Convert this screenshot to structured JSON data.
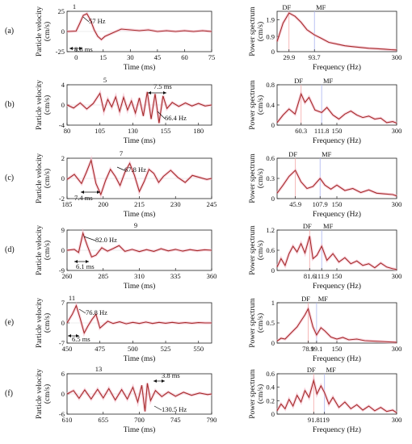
{
  "chart_data": [
    {
      "type": "line",
      "kind": "time",
      "row": "(a)",
      "peak_label": "1",
      "freq_label": "57 Hz",
      "dur_label": "8.8 ms",
      "xlabel": "Time (ms)",
      "ylabel": "Particle velocity\n(cm/s)",
      "xlim": [
        -5,
        75
      ],
      "ylim": [
        -25,
        25
      ],
      "xticks": [
        0,
        15,
        30,
        45,
        60,
        75
      ],
      "yticks": [
        -25,
        0,
        25
      ],
      "x": [
        -5,
        0,
        2,
        4,
        6,
        8,
        10,
        12,
        14,
        16,
        20,
        25,
        30,
        35,
        40,
        45,
        50,
        55,
        60,
        65,
        70,
        75
      ],
      "y": [
        0,
        0.5,
        10,
        20,
        22,
        14,
        2,
        -6,
        -10,
        -6,
        -2,
        3,
        2,
        1,
        2,
        0,
        1,
        0,
        1,
        0,
        1,
        0
      ]
    },
    {
      "type": "line",
      "kind": "spectrum",
      "row": "(a)",
      "df_label": "DF",
      "mf_label": "MF",
      "xlabel": "Frequency (Hz)",
      "ylabel": "Power spectrum\n(cm/s)",
      "xlim": [
        0,
        300
      ],
      "ylim": [
        0,
        2.4
      ],
      "xticks": [
        29.9,
        93.7,
        300
      ],
      "yticks": [
        0,
        0.9,
        1.9
      ],
      "df": 29.9,
      "mf": 93.7,
      "x": [
        0,
        15,
        29.9,
        45,
        60,
        75,
        93.7,
        110,
        130,
        150,
        170,
        190,
        210,
        230,
        250,
        270,
        285,
        300
      ],
      "y": [
        0.6,
        1.7,
        2.3,
        2.1,
        1.75,
        1.3,
        1.0,
        0.8,
        0.55,
        0.45,
        0.35,
        0.3,
        0.25,
        0.2,
        0.18,
        0.15,
        0.12,
        0.1
      ]
    },
    {
      "type": "line",
      "kind": "time",
      "row": "(b)",
      "peak_label": "5",
      "freq_label": "66.4 Hz",
      "dur_label": "7.5 ms",
      "xlabel": "Time (ms)",
      "ylabel": "Particle velocity\n(cm/s)",
      "xlim": [
        80,
        190
      ],
      "ylim": [
        -4,
        4
      ],
      "xticks": [
        80,
        105,
        130,
        155,
        180
      ],
      "yticks": [
        -4,
        0,
        4
      ],
      "x": [
        80,
        85,
        90,
        95,
        100,
        105,
        108,
        111,
        114,
        117,
        120,
        123,
        126,
        129,
        132,
        135,
        138,
        141,
        144,
        147,
        150,
        153,
        156,
        160,
        165,
        170,
        175,
        180,
        185,
        190
      ],
      "y": [
        0,
        -0.6,
        0.4,
        -0.8,
        0.3,
        2.3,
        -1.2,
        1.1,
        -0.4,
        1.6,
        -1.3,
        1.5,
        -1.0,
        0.8,
        -1.6,
        1.4,
        -2.2,
        2.6,
        -2.8,
        2.2,
        -3.6,
        1.8,
        -0.7,
        0.5,
        -0.3,
        0.4,
        -0.2,
        0.3,
        -0.2,
        0
      ]
    },
    {
      "type": "line",
      "kind": "spectrum",
      "row": "(b)",
      "df_label": "DF",
      "mf_label": "MF",
      "xlabel": "Frequency (Hz)",
      "ylabel": "Power spectrum\n(cm/s)",
      "xlim": [
        0,
        300
      ],
      "ylim": [
        0,
        0.8
      ],
      "xticks": [
        60.3,
        111.8,
        150,
        300
      ],
      "yticks": [
        0,
        0.4,
        0.8
      ],
      "df": 60.3,
      "mf": 111.8,
      "x": [
        0,
        15,
        30,
        45,
        60.3,
        70,
        80,
        95,
        111.8,
        125,
        140,
        155,
        170,
        185,
        200,
        215,
        230,
        245,
        260,
        275,
        290,
        300
      ],
      "y": [
        0.05,
        0.2,
        0.32,
        0.22,
        0.62,
        0.45,
        0.55,
        0.3,
        0.25,
        0.35,
        0.2,
        0.12,
        0.22,
        0.28,
        0.2,
        0.15,
        0.18,
        0.12,
        0.14,
        0.05,
        0.07,
        0.04
      ]
    },
    {
      "type": "line",
      "kind": "time",
      "row": "(c)",
      "peak_label": "7",
      "freq_label": "67.8 Hz",
      "dur_label": "7.4 ms",
      "xlabel": "Time (ms)",
      "ylabel": "Particle velocity\n(cm/s)",
      "xlim": [
        185,
        245
      ],
      "ylim": [
        -2,
        2
      ],
      "xticks": [
        185,
        200,
        215,
        230,
        245
      ],
      "yticks": [
        -2,
        0,
        2
      ],
      "x": [
        185,
        188,
        191,
        193,
        195,
        197,
        199,
        201,
        203,
        205,
        207,
        209,
        211,
        213,
        215,
        217,
        219,
        221,
        223,
        225,
        228,
        231,
        234,
        237,
        240,
        243,
        245
      ],
      "y": [
        -0.1,
        0.4,
        -0.5,
        0.6,
        1.8,
        -0.5,
        -1.6,
        -0.2,
        0.9,
        0.2,
        -0.7,
        0.6,
        1.5,
        0.3,
        -1.3,
        -0.3,
        0.9,
        0.5,
        -0.4,
        0.2,
        0.8,
        0.1,
        -0.4,
        0.3,
        0.1,
        -0.1,
        0
      ]
    },
    {
      "type": "line",
      "kind": "spectrum",
      "row": "(c)",
      "df_label": "DF",
      "mf_label": "MF",
      "xlabel": "Frequency (Hz)",
      "ylabel": "Power spectrum\n(cm/s)",
      "xlim": [
        0,
        300
      ],
      "ylim": [
        0,
        0.6
      ],
      "xticks": [
        45.9,
        107.9,
        150,
        300
      ],
      "yticks": [
        0,
        0.3,
        0.6
      ],
      "df": 45.9,
      "mf": 107.9,
      "x": [
        0,
        15,
        30,
        45.9,
        60,
        75,
        90,
        107.9,
        120,
        135,
        150,
        170,
        190,
        210,
        230,
        250,
        270,
        290,
        300
      ],
      "y": [
        0.08,
        0.2,
        0.33,
        0.42,
        0.25,
        0.15,
        0.18,
        0.3,
        0.2,
        0.14,
        0.2,
        0.12,
        0.15,
        0.09,
        0.13,
        0.08,
        0.07,
        0.06,
        0.04
      ]
    },
    {
      "type": "line",
      "kind": "time",
      "row": "(d)",
      "peak_label": "9",
      "freq_label": "82.0 Hz",
      "dur_label": "6.1 ms",
      "xlabel": "Time (ms)",
      "ylabel": "Particle velocity\n(cm/s)",
      "xlim": [
        260,
        360
      ],
      "ylim": [
        -9,
        9
      ],
      "xticks": [
        260,
        285,
        310,
        335,
        360
      ],
      "yticks": [
        -9,
        0,
        9
      ],
      "x": [
        260,
        265,
        268,
        271,
        274,
        277,
        280,
        284,
        288,
        292,
        296,
        300,
        305,
        310,
        315,
        320,
        325,
        330,
        335,
        340,
        345,
        350,
        355,
        360
      ],
      "y": [
        0,
        0.4,
        -1.0,
        7.6,
        2.0,
        -3.0,
        -2.2,
        1.1,
        -0.4,
        0.8,
        2.1,
        -0.5,
        0.4,
        -0.6,
        0.3,
        -0.5,
        0.7,
        -0.3,
        0.4,
        -0.4,
        0.3,
        -0.2,
        0.2,
        0
      ]
    },
    {
      "type": "line",
      "kind": "spectrum",
      "row": "(d)",
      "df_label": "DF",
      "mf_label": "MF",
      "xlabel": "Frequency (Hz)",
      "ylabel": "Power spectrum\n(cm/s)",
      "xlim": [
        0,
        300
      ],
      "ylim": [
        0,
        1.2
      ],
      "xticks": [
        81.6,
        111.9,
        150,
        300
      ],
      "yticks": [
        0,
        0.6,
        1.2
      ],
      "df": 81.6,
      "mf": 111.9,
      "x": [
        0,
        10,
        20,
        30,
        40,
        50,
        60,
        70,
        81.6,
        90,
        100,
        111.9,
        125,
        140,
        155,
        170,
        185,
        200,
        215,
        230,
        245,
        260,
        275,
        290,
        300
      ],
      "y": [
        0.1,
        0.35,
        0.15,
        0.5,
        0.72,
        0.55,
        0.8,
        0.52,
        1.02,
        0.35,
        0.45,
        0.72,
        0.3,
        0.5,
        0.25,
        0.38,
        0.2,
        0.28,
        0.15,
        0.2,
        0.08,
        0.22,
        0.1,
        0.05,
        0.03
      ]
    },
    {
      "type": "line",
      "kind": "time",
      "row": "(e)",
      "peak_label": "11",
      "freq_label": "76.8 Hz",
      "dur_label": "6.5 ms",
      "xlabel": "Time (ms)",
      "ylabel": "Particle velocity\n(cm/s)",
      "xlim": [
        450,
        560
      ],
      "ylim": [
        -7,
        7
      ],
      "xticks": [
        450,
        475,
        500,
        525,
        550
      ],
      "yticks": [
        -7,
        0,
        7
      ],
      "x": [
        450,
        454,
        457,
        460,
        463,
        466,
        469,
        472,
        475,
        478,
        481,
        485,
        490,
        495,
        500,
        505,
        510,
        515,
        520,
        525,
        530,
        535,
        540,
        545,
        550,
        555,
        560
      ],
      "y": [
        0,
        3.0,
        6.0,
        1.5,
        -3.5,
        -1.0,
        1.2,
        3.0,
        -1.8,
        -0.6,
        0.6,
        -0.2,
        0.4,
        -0.3,
        0.2,
        -0.2,
        0.3,
        -0.2,
        0.2,
        -0.1,
        0.2,
        -0.1,
        0.1,
        -0.1,
        0.1,
        0,
        0
      ]
    },
    {
      "type": "line",
      "kind": "spectrum",
      "row": "(e)",
      "df_label": "DF",
      "mf_label": "MF",
      "xlabel": "Frequency (Hz)",
      "ylabel": "Power spectrum\n(cm/s)",
      "xlim": [
        0,
        300
      ],
      "ylim": [
        0,
        1.0
      ],
      "xticks": [
        78.1,
        99.1,
        150,
        300
      ],
      "yticks": [
        0,
        0.5,
        1.0
      ],
      "df": 78.1,
      "mf": 99.1,
      "x": [
        0,
        10,
        20,
        30,
        40,
        50,
        60,
        70,
        78.1,
        90,
        99.1,
        110,
        120,
        135,
        150,
        165,
        180,
        200,
        220,
        240,
        260,
        280,
        300
      ],
      "y": [
        0.05,
        0.12,
        0.1,
        0.2,
        0.3,
        0.4,
        0.55,
        0.7,
        0.85,
        0.4,
        0.2,
        0.38,
        0.3,
        0.15,
        0.1,
        0.14,
        0.08,
        0.1,
        0.06,
        0.05,
        0.04,
        0.03,
        0.02
      ]
    },
    {
      "type": "line",
      "kind": "time",
      "row": "(f)",
      "peak_label": "13",
      "freq_label": "130.5 Hz",
      "dur_label": "3.8 ms",
      "xlabel": "Time (ms)",
      "ylabel": "Particle velocity\n(cm/s)",
      "xlim": [
        610,
        790
      ],
      "ylim": [
        -6,
        6
      ],
      "xticks": [
        610,
        655,
        700,
        745,
        790
      ],
      "yticks": [
        -6,
        0,
        6
      ],
      "x": [
        610,
        618,
        625,
        632,
        640,
        648,
        655,
        662,
        670,
        678,
        685,
        692,
        698,
        703,
        707,
        710,
        714,
        720,
        728,
        736,
        745,
        755,
        765,
        775,
        785,
        790
      ],
      "y": [
        0,
        1.0,
        -1.3,
        1.2,
        -1.5,
        1.4,
        -1.2,
        1.6,
        -1.8,
        1.3,
        -1.5,
        2.0,
        -2.4,
        2.6,
        -5.2,
        3.2,
        -2.0,
        1.0,
        -0.8,
        0.6,
        -0.7,
        0.5,
        -0.4,
        0.3,
        -0.2,
        0
      ]
    },
    {
      "type": "line",
      "kind": "spectrum",
      "row": "(f)",
      "df_label": "DF",
      "mf_label": "MF",
      "xlabel": "Frequency (Hz)",
      "ylabel": "Power spectrum\n(cm/s)",
      "xlim": [
        0,
        300
      ],
      "ylim": [
        0,
        0.6
      ],
      "xticks": [
        91.8,
        119,
        300
      ],
      "yticks": [
        0,
        0.2,
        0.4,
        0.6
      ],
      "df": 91.8,
      "mf": 119,
      "x": [
        0,
        10,
        20,
        30,
        40,
        50,
        60,
        70,
        80,
        91.8,
        100,
        110,
        119,
        130,
        140,
        155,
        170,
        185,
        200,
        215,
        230,
        245,
        260,
        275,
        290,
        300
      ],
      "y": [
        0.05,
        0.15,
        0.08,
        0.22,
        0.12,
        0.28,
        0.18,
        0.35,
        0.25,
        0.5,
        0.3,
        0.42,
        0.32,
        0.15,
        0.25,
        0.1,
        0.18,
        0.08,
        0.14,
        0.06,
        0.12,
        0.05,
        0.1,
        0.04,
        0.06,
        0.02
      ]
    }
  ]
}
